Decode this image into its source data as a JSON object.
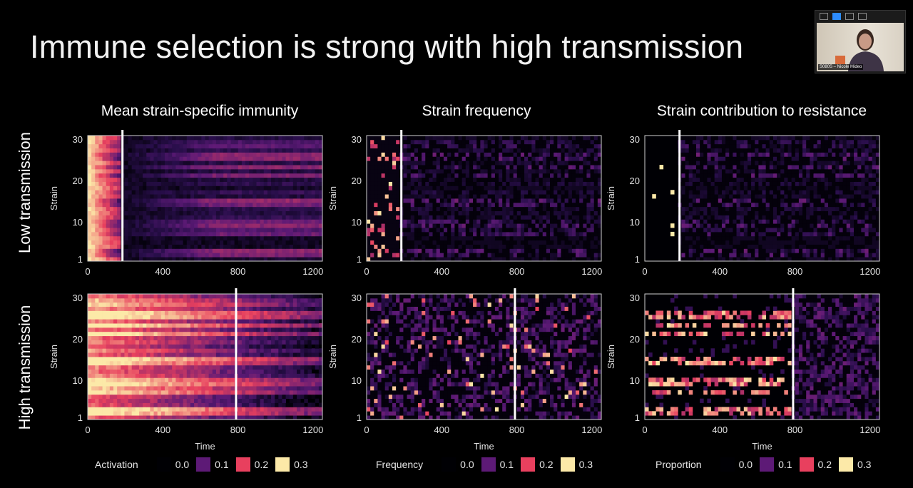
{
  "slide": {
    "title": "Immune selection is strong with high transmission",
    "row_labels": [
      "Low transmission",
      "High transmission"
    ],
    "column_titles": [
      "Mean strain-specific immunity",
      "Strain frequency",
      "Strain contribution to resistance"
    ]
  },
  "video": {
    "participant": "S080S – Nicole Mideo"
  },
  "legends": [
    {
      "label": "Activation",
      "values": [
        "0.0",
        "0.1",
        "0.2",
        "0.3"
      ]
    },
    {
      "label": "Frequency",
      "values": [
        "0.0",
        "0.1",
        "0.2",
        "0.3"
      ]
    },
    {
      "label": "Proportion",
      "values": [
        "0.0",
        "0.1",
        "0.2",
        "0.3"
      ]
    }
  ],
  "colors": {
    "0.0": "#000004",
    "0.1": "#5d1a76",
    "0.2": "#e8405e",
    "0.3": "#fce9a8",
    "background": "#000000",
    "vline": "#ffffff"
  },
  "chart_data": [
    {
      "type": "heatmap",
      "title": "Mean strain-specific immunity",
      "row": "Low transmission",
      "xlabel": "",
      "ylabel": "Strain",
      "xlim": [
        0,
        1250
      ],
      "ylim": [
        1,
        30
      ],
      "xticks": [
        "0",
        "400",
        "800",
        "1200"
      ],
      "yticks": [
        "1",
        "10",
        "20",
        "30"
      ],
      "vline": 185,
      "pattern": "immunity-low",
      "color_range": [
        0,
        0.3
      ]
    },
    {
      "type": "heatmap",
      "title": "Strain frequency",
      "row": "Low transmission",
      "xlabel": "",
      "ylabel": "Strain",
      "xlim": [
        0,
        1250
      ],
      "ylim": [
        1,
        30
      ],
      "xticks": [
        "0",
        "400",
        "800",
        "1200"
      ],
      "yticks": [
        "1",
        "10",
        "20",
        "30"
      ],
      "vline": 185,
      "pattern": "frequency-low",
      "color_range": [
        0,
        0.3
      ]
    },
    {
      "type": "heatmap",
      "title": "Strain contribution to resistance",
      "row": "Low transmission",
      "xlabel": "",
      "ylabel": "Strain",
      "xlim": [
        0,
        1250
      ],
      "ylim": [
        1,
        30
      ],
      "xticks": [
        "0",
        "400",
        "800",
        "1200"
      ],
      "yticks": [
        "1",
        "10",
        "20",
        "30"
      ],
      "vline": 185,
      "pattern": "contribution-low",
      "color_range": [
        0,
        0.3
      ]
    },
    {
      "type": "heatmap",
      "title": "Mean strain-specific immunity",
      "row": "High transmission",
      "xlabel": "Time",
      "ylabel": "Strain",
      "xlim": [
        0,
        1250
      ],
      "ylim": [
        1,
        30
      ],
      "xticks": [
        "0",
        "400",
        "800",
        "1200"
      ],
      "yticks": [
        "1",
        "10",
        "20",
        "30"
      ],
      "vline": 790,
      "pattern": "immunity-high",
      "color_range": [
        0,
        0.3
      ]
    },
    {
      "type": "heatmap",
      "title": "Strain frequency",
      "row": "High transmission",
      "xlabel": "Time",
      "ylabel": "Strain",
      "xlim": [
        0,
        1250
      ],
      "ylim": [
        1,
        30
      ],
      "xticks": [
        "0",
        "400",
        "800",
        "1200"
      ],
      "yticks": [
        "1",
        "10",
        "20",
        "30"
      ],
      "vline": 790,
      "pattern": "frequency-high",
      "color_range": [
        0,
        0.3
      ]
    },
    {
      "type": "heatmap",
      "title": "Strain contribution to resistance",
      "row": "High transmission",
      "xlabel": "Time",
      "ylabel": "Strain",
      "xlim": [
        0,
        1250
      ],
      "ylim": [
        1,
        30
      ],
      "xticks": [
        "0",
        "400",
        "800",
        "1200"
      ],
      "yticks": [
        "1",
        "10",
        "20",
        "30"
      ],
      "vline": 790,
      "pattern": "contribution-high",
      "color_range": [
        0,
        0.3
      ]
    }
  ]
}
